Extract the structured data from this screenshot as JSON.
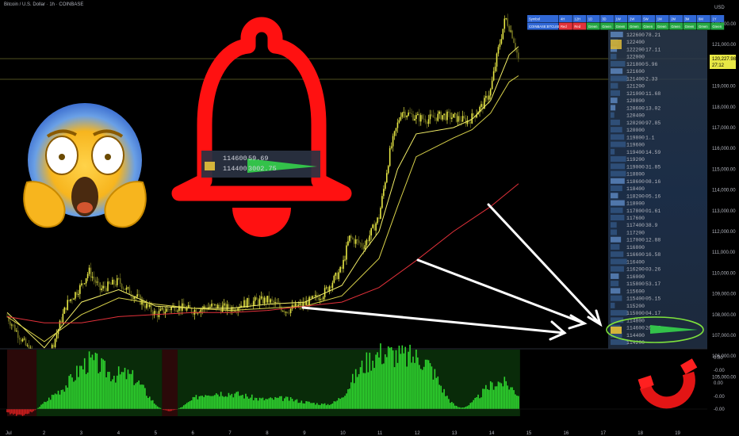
{
  "header": {
    "title": "Bitcoin / U.S. Dollar · 1h · COINBASE",
    "currency": "USD"
  },
  "colors": {
    "bull": "#e8e845",
    "bear": "#6b6b1e",
    "ema_fast": "#f5f068",
    "ema_slow": "#d9d24a",
    "sma_long": "#e3313a",
    "hist_pos": "#2fd62f",
    "hist_neg": "#d21e1e",
    "alert_red": "#ff1111",
    "highlight_ring": "#7ee23c"
  },
  "icons": [
    "bell-icon",
    "screaming-face-emoji-icon",
    "magnet-icon"
  ],
  "y_axis": {
    "ticks": [
      "122,000.00",
      "121,000.00",
      "120,000.00",
      "119,000.00",
      "118,000.00",
      "117,000.00",
      "116,000.00",
      "115,000.00",
      "114,000.00",
      "113,000.00",
      "112,000.00",
      "111,000.00",
      "110,000.00",
      "109,000.00",
      "108,000.00",
      "107,000.00",
      "106,000.00",
      "105,000.00"
    ],
    "last_price": "120,227.98",
    "last_price_sub": "27:12"
  },
  "osc_axis": {
    "ticks": [
      "0.00",
      "-0.00",
      "0.00",
      "-0.00",
      "-0.00"
    ]
  },
  "x_axis": {
    "ticks": [
      "Jul",
      "2",
      "3",
      "4",
      "5",
      "6",
      "7",
      "8",
      "9",
      "10",
      "11",
      "12",
      "13",
      "14",
      "15",
      "16",
      "17",
      "18",
      "19"
    ]
  },
  "table": {
    "headers": [
      "Symbol",
      "4H",
      "12H",
      "1D",
      "3D",
      "1W",
      "2W",
      "5W",
      "1M",
      "2M",
      "3M",
      "6M",
      "1Y"
    ],
    "row": [
      "COINBASE:BTCUSD",
      "Red",
      "Red",
      "Green",
      "Green",
      "Green",
      "Green",
      "Green",
      "Green",
      "Green",
      "Green",
      "Green",
      "Green"
    ]
  },
  "ladder": {
    "prices": [
      "122600",
      "122400",
      "122200",
      "122000",
      "121800",
      "121600",
      "121400",
      "121200",
      "121000",
      "120800",
      "120600",
      "120400",
      "120200",
      "120000",
      "119800",
      "119600",
      "119400",
      "119200",
      "119000",
      "118800",
      "118600",
      "118400",
      "118200",
      "118000",
      "117800",
      "117600",
      "117400",
      "117200",
      "117000",
      "116800",
      "116600",
      "116400",
      "116200",
      "116000",
      "115800",
      "115600",
      "115400",
      "115200",
      "115000",
      "114800",
      "114600",
      "114400",
      "114200"
    ],
    "values": [
      "78.21",
      "",
      "17.11",
      "",
      "5.96",
      "",
      "2.33",
      "",
      "11.68",
      "",
      "13.02",
      "",
      "97.85",
      "",
      "1.1",
      "",
      "14.59",
      "",
      "31.85",
      "",
      "08.16",
      "",
      "05.16",
      "",
      "01.61",
      "",
      "38.9",
      "",
      "12.88",
      "",
      "16.58",
      "",
      "03.26",
      "",
      "53.17",
      "",
      "05.15",
      "",
      "04.17",
      "",
      "26.67",
      "",
      ""
    ]
  },
  "bell_callout": {
    "rows": [
      {
        "price": "114600",
        "value": "59.69"
      },
      {
        "price": "114400",
        "value": "3002.75"
      }
    ]
  },
  "chart_data": {
    "type": "candlestick",
    "title": "Bitcoin / U.S. Dollar · 1h · COINBASE",
    "ylim": [
      104500,
      122800
    ],
    "x_range": [
      1,
      19
    ],
    "x": [
      "Jul 1",
      "Jul 2",
      "Jul 3",
      "Jul 4",
      "Jul 5",
      "Jul 6",
      "Jul 7",
      "Jul 8",
      "Jul 9",
      "Jul 10",
      "Jul 11",
      "Jul 12",
      "Jul 13",
      "Jul 14"
    ],
    "price_path": [
      [
        1.0,
        107900
      ],
      [
        1.5,
        106500
      ],
      [
        2.0,
        105400
      ],
      [
        2.3,
        106900
      ],
      [
        2.6,
        108500
      ],
      [
        3.0,
        109400
      ],
      [
        3.2,
        110100
      ],
      [
        3.5,
        109200
      ],
      [
        4.0,
        109600
      ],
      [
        4.2,
        109200
      ],
      [
        4.5,
        108800
      ],
      [
        5.0,
        108000
      ],
      [
        5.5,
        108400
      ],
      [
        6.0,
        108200
      ],
      [
        6.5,
        108400
      ],
      [
        7.0,
        108300
      ],
      [
        7.5,
        108600
      ],
      [
        8.0,
        108700
      ],
      [
        8.5,
        108200
      ],
      [
        9.0,
        108500
      ],
      [
        9.5,
        109000
      ],
      [
        10.0,
        110200
      ],
      [
        10.2,
        111700
      ],
      [
        10.6,
        111300
      ],
      [
        11.0,
        112700
      ],
      [
        11.3,
        115900
      ],
      [
        11.6,
        117800
      ],
      [
        12.0,
        117500
      ],
      [
        12.3,
        117400
      ],
      [
        12.7,
        117600
      ],
      [
        13.0,
        117500
      ],
      [
        13.4,
        117300
      ],
      [
        13.8,
        118100
      ],
      [
        14.0,
        118800
      ],
      [
        14.2,
        120700
      ],
      [
        14.4,
        122300
      ],
      [
        14.6,
        121400
      ],
      [
        14.75,
        120300
      ]
    ],
    "series": [
      {
        "name": "EMA fast",
        "values": [
          [
            1.0,
            108100
          ],
          [
            2.0,
            106400
          ],
          [
            3.0,
            108600
          ],
          [
            4.0,
            109200
          ],
          [
            5.0,
            108400
          ],
          [
            6.0,
            108300
          ],
          [
            7.0,
            108300
          ],
          [
            8.0,
            108500
          ],
          [
            9.0,
            108600
          ],
          [
            10.0,
            109400
          ],
          [
            10.5,
            110800
          ],
          [
            11.0,
            112000
          ],
          [
            11.5,
            115000
          ],
          [
            12.0,
            116700
          ],
          [
            13.0,
            117000
          ],
          [
            13.5,
            117400
          ],
          [
            14.0,
            118300
          ],
          [
            14.5,
            120500
          ],
          [
            14.75,
            120900
          ]
        ]
      },
      {
        "name": "EMA slow",
        "values": [
          [
            1.0,
            107900
          ],
          [
            2.0,
            106700
          ],
          [
            3.0,
            108000
          ],
          [
            4.0,
            108800
          ],
          [
            5.0,
            108500
          ],
          [
            6.0,
            108300
          ],
          [
            7.0,
            108200
          ],
          [
            8.0,
            108300
          ],
          [
            9.0,
            108400
          ],
          [
            10.0,
            108900
          ],
          [
            10.5,
            109800
          ],
          [
            11.0,
            110700
          ],
          [
            11.5,
            113200
          ],
          [
            12.0,
            115600
          ],
          [
            13.0,
            116500
          ],
          [
            13.5,
            116900
          ],
          [
            14.0,
            117700
          ],
          [
            14.5,
            119200
          ],
          [
            14.75,
            119500
          ]
        ]
      },
      {
        "name": "SMA long",
        "values": [
          [
            1.0,
            107900
          ],
          [
            2.0,
            107600
          ],
          [
            3.0,
            107600
          ],
          [
            4.0,
            107900
          ],
          [
            5.0,
            108000
          ],
          [
            6.0,
            108100
          ],
          [
            7.0,
            108100
          ],
          [
            8.0,
            108200
          ],
          [
            9.0,
            108400
          ],
          [
            10.0,
            108600
          ],
          [
            11.0,
            109300
          ],
          [
            12.0,
            110600
          ],
          [
            13.0,
            112000
          ],
          [
            14.0,
            113200
          ],
          [
            14.75,
            114300
          ]
        ]
      }
    ],
    "histogram": {
      "ylim": [
        -0.02,
        0.055
      ],
      "bumps": [
        [
          1.4,
          -0.006
        ],
        [
          2.4,
          0.013
        ],
        [
          3.1,
          0.025
        ],
        [
          3.4,
          0.022
        ],
        [
          4.1,
          0.02
        ],
        [
          4.5,
          0.016
        ],
        [
          5.2,
          -0.004
        ],
        [
          6.3,
          0.013
        ],
        [
          7.0,
          0.011
        ],
        [
          7.6,
          0.007
        ],
        [
          8.4,
          0.009
        ],
        [
          9.2,
          0.005
        ],
        [
          10.5,
          0.028
        ],
        [
          11.1,
          0.038
        ],
        [
          11.7,
          0.03
        ],
        [
          12.3,
          0.036
        ],
        [
          13.2,
          -0.003
        ],
        [
          13.9,
          0.012
        ],
        [
          14.4,
          0.02
        ]
      ]
    }
  }
}
